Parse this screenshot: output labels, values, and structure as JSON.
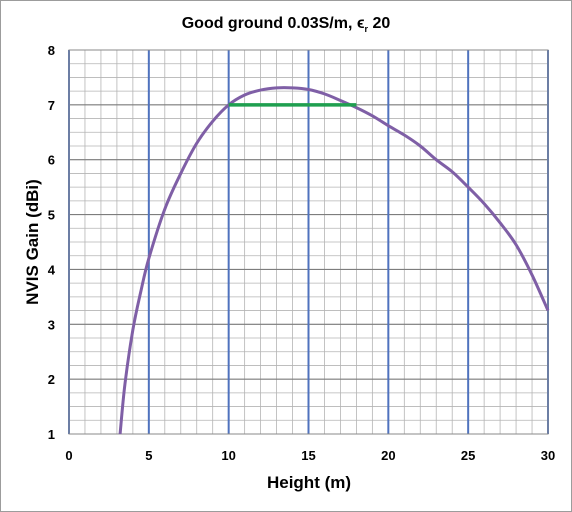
{
  "chart_data": {
    "type": "line",
    "title": {
      "prefix": "Good ground 0.03S/m, ",
      "symbol": "ϵ",
      "subscript": "r",
      "suffix": " 20"
    },
    "xlabel": "Height (m)",
    "ylabel": "NVIS Gain (dBi)",
    "xlim": [
      0,
      30
    ],
    "ylim": [
      1,
      8
    ],
    "xticks": [
      "0",
      "5",
      "10",
      "15",
      "20",
      "25",
      "30"
    ],
    "yticks": [
      "1",
      "2",
      "3",
      "4",
      "5",
      "6",
      "7",
      "8"
    ],
    "grid": true,
    "minor_x_step": 1,
    "minor_y_step": 0.25,
    "series": [
      {
        "color": "#7f5fa6",
        "x": [
          3.2,
          3.5,
          4.0,
          4.5,
          5.0,
          6.0,
          7.0,
          8.0,
          9.0,
          10.0,
          11.0,
          12.0,
          13.0,
          14.0,
          15.0,
          16.0,
          17.0,
          18.0,
          19.0,
          20.0,
          21.0,
          22.0,
          23.0,
          24.0,
          25.0,
          26.0,
          27.0,
          28.0,
          29.0,
          30.0
        ],
        "y": [
          1.0,
          1.9,
          2.9,
          3.6,
          4.2,
          5.1,
          5.75,
          6.3,
          6.7,
          7.0,
          7.18,
          7.27,
          7.31,
          7.31,
          7.28,
          7.2,
          7.08,
          6.95,
          6.8,
          6.62,
          6.45,
          6.25,
          6.0,
          5.78,
          5.5,
          5.2,
          4.85,
          4.45,
          3.9,
          3.25
        ]
      },
      {
        "color": "#1f9f4f",
        "x": [
          10,
          18
        ],
        "y": [
          7.0,
          7.0
        ]
      }
    ]
  }
}
